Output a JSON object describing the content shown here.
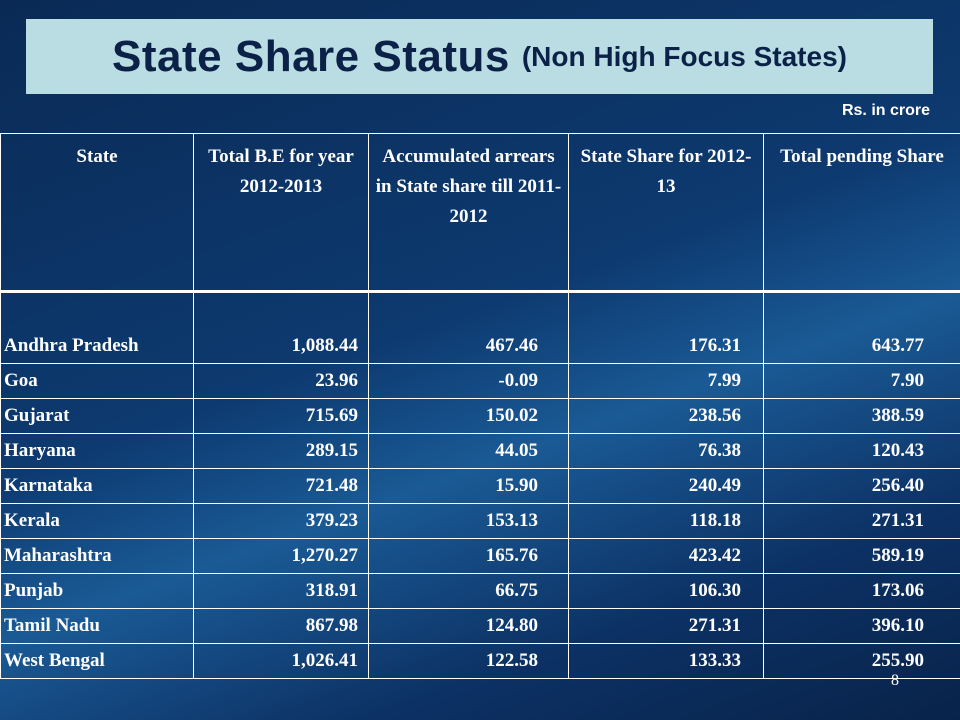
{
  "title": {
    "main": "State Share Status",
    "sub": "(Non High Focus States)"
  },
  "units": "Rs. in crore",
  "columns": [
    "State",
    "Total B.E for year 2012-2013",
    "Accumulated arrears in State share till 2011-2012",
    "State Share for 2012-13",
    "Total pending Share"
  ],
  "rows": [
    [
      "Andhra Pradesh",
      "1,088.44",
      "467.46",
      "176.31",
      "643.77"
    ],
    [
      "Goa",
      "23.96",
      "-0.09",
      "7.99",
      "7.90"
    ],
    [
      "Gujarat",
      "715.69",
      "150.02",
      "238.56",
      "388.59"
    ],
    [
      "Haryana",
      "289.15",
      "44.05",
      "76.38",
      "120.43"
    ],
    [
      "Karnataka",
      "721.48",
      "15.90",
      "240.49",
      "256.40"
    ],
    [
      "Kerala",
      "379.23",
      "153.13",
      "118.18",
      "271.31"
    ],
    [
      "Maharashtra",
      "1,270.27",
      "165.76",
      "423.42",
      "589.19"
    ],
    [
      "Punjab",
      "318.91",
      "66.75",
      "106.30",
      "173.06"
    ],
    [
      "Tamil Nadu",
      "867.98",
      "124.80",
      "271.31",
      "396.10"
    ],
    [
      "West Bengal",
      "1,026.41",
      "122.58",
      "133.33",
      "255.90"
    ]
  ],
  "page_number": "8"
}
